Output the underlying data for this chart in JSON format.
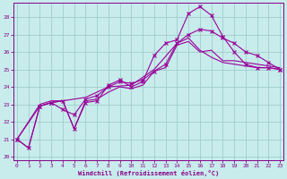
{
  "xlabel": "Windchill (Refroidissement éolien,°C)",
  "background_color": "#c8ecec",
  "grid_color": "#a0cccc",
  "line_color": "#990099",
  "xlim": [
    -0.3,
    23.3
  ],
  "ylim": [
    19.8,
    28.8
  ],
  "yticks": [
    20,
    21,
    22,
    23,
    24,
    25,
    26,
    27,
    28
  ],
  "xticks": [
    0,
    1,
    2,
    3,
    4,
    5,
    6,
    7,
    8,
    9,
    10,
    11,
    12,
    13,
    14,
    15,
    16,
    17,
    18,
    19,
    20,
    21,
    22,
    23
  ],
  "line1_x": [
    0,
    1,
    2,
    3,
    4,
    5,
    6,
    7,
    8,
    9,
    10,
    11,
    12,
    13,
    14,
    15,
    16,
    17,
    18,
    19,
    20,
    21,
    22,
    23
  ],
  "line1_y": [
    21.0,
    20.5,
    22.9,
    23.1,
    23.2,
    21.6,
    23.2,
    23.3,
    23.7,
    24.0,
    23.9,
    24.1,
    24.9,
    25.1,
    26.4,
    26.6,
    26.0,
    26.1,
    25.5,
    25.5,
    25.4,
    25.3,
    25.2,
    25.1
  ],
  "line2_x": [
    0,
    1,
    2,
    3,
    4,
    5,
    6,
    7,
    8,
    9,
    10,
    11,
    12,
    13,
    14,
    15,
    16,
    17,
    18,
    19,
    20,
    21,
    22,
    23
  ],
  "line2_y": [
    21.0,
    20.5,
    22.9,
    23.1,
    23.2,
    21.6,
    23.1,
    23.2,
    24.1,
    24.4,
    24.0,
    24.3,
    25.8,
    26.5,
    26.7,
    28.2,
    28.6,
    28.1,
    26.9,
    26.0,
    25.3,
    25.1,
    25.1,
    25.0
  ],
  "line3_x": [
    0,
    2,
    3,
    4,
    5,
    6,
    7,
    8,
    9,
    10,
    11,
    12,
    13,
    14,
    15,
    16,
    17,
    18,
    19,
    20,
    21,
    22,
    23
  ],
  "line3_y": [
    21.0,
    22.9,
    23.1,
    22.7,
    22.4,
    23.3,
    23.5,
    24.0,
    24.3,
    24.2,
    24.4,
    24.9,
    25.3,
    26.5,
    27.0,
    27.3,
    27.2,
    26.8,
    26.5,
    26.0,
    25.8,
    25.4,
    25.0
  ],
  "line4_x": [
    0,
    2,
    3,
    4,
    6,
    8,
    10,
    12,
    14,
    15,
    16,
    17,
    18,
    19,
    20,
    21,
    22,
    23
  ],
  "line4_y": [
    21.0,
    23.0,
    23.2,
    23.2,
    23.4,
    24.0,
    24.1,
    25.0,
    26.5,
    26.8,
    26.1,
    25.7,
    25.4,
    25.3,
    25.2,
    25.1,
    25.1,
    25.0
  ]
}
